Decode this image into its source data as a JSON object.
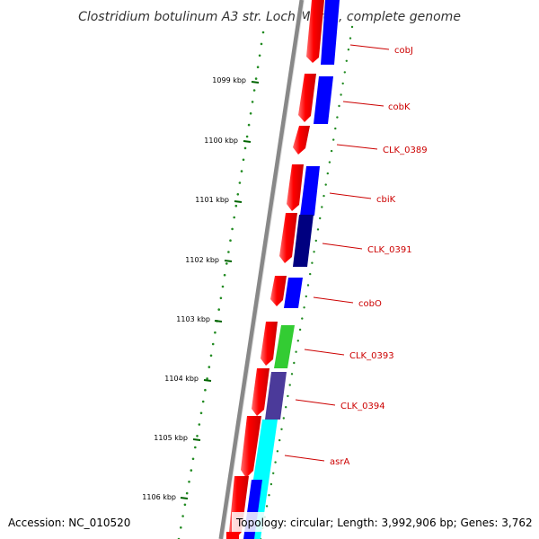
{
  "title": "Clostridium botulinum A3 str. Loch Maree, complete genome",
  "accession_label": "Accession: NC_010520",
  "topology_label": "Topology: circular; Length: 3,992,906 bp; Genes: 3,762",
  "scale_ticks": [
    {
      "label": "1099 kbp"
    },
    {
      "label": "1100 kbp"
    },
    {
      "label": "1101 kbp"
    },
    {
      "label": "1102 kbp"
    },
    {
      "label": "1103 kbp"
    },
    {
      "label": "1104 kbp"
    },
    {
      "label": "1105 kbp"
    },
    {
      "label": "1106 kbp"
    }
  ],
  "genes": [
    {
      "label": "cobJ",
      "color": "#0000ff"
    },
    {
      "label": "cobK",
      "color": "#0000ff"
    },
    {
      "label": "CLK_0389",
      "color": ""
    },
    {
      "label": "cbiK",
      "color": "#0000ff"
    },
    {
      "label": "CLK_0391",
      "color": "#000080"
    },
    {
      "label": "cobO",
      "color": "#0000ff"
    },
    {
      "label": "CLK_0393",
      "color": "#33cc33"
    },
    {
      "label": "CLK_0394",
      "color": "#4b3a9a"
    },
    {
      "label": "asrA",
      "color": "#00ffff"
    }
  ],
  "colors": {
    "cds_forward": "#ff0000",
    "backbone": "#888888",
    "scale": "#228b22",
    "label": "#cc0000"
  }
}
